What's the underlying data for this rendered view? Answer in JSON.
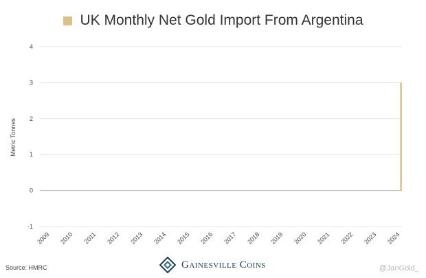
{
  "chart_data": {
    "type": "bar",
    "title": "UK Monthly Net Gold Import From Argentina",
    "ylabel": "Metric Tonnes",
    "xlabel": "",
    "ylim": [
      -1,
      4
    ],
    "yticks": [
      -1,
      0,
      1,
      2,
      3,
      4
    ],
    "xticks": [
      "2009",
      "2010",
      "2011",
      "2012",
      "2013",
      "2014",
      "2015",
      "2016",
      "2017",
      "2018",
      "2019",
      "2020",
      "2021",
      "2022",
      "2023",
      "2024"
    ],
    "x_range": [
      "2009-01",
      "2024-06"
    ],
    "grid": true,
    "legend_position": "top-center",
    "series": [
      {
        "name": "UK Monthly Net Gold Import From Argentina",
        "color": "#dcc089",
        "points": [
          {
            "x": "2024-06",
            "y": 3
          }
        ]
      }
    ]
  },
  "source_label": "Source: HMRC",
  "brand_name": "Gainesville Coins",
  "brand_icon": "gainesville-coins-logo",
  "handle": "@JanGold_"
}
